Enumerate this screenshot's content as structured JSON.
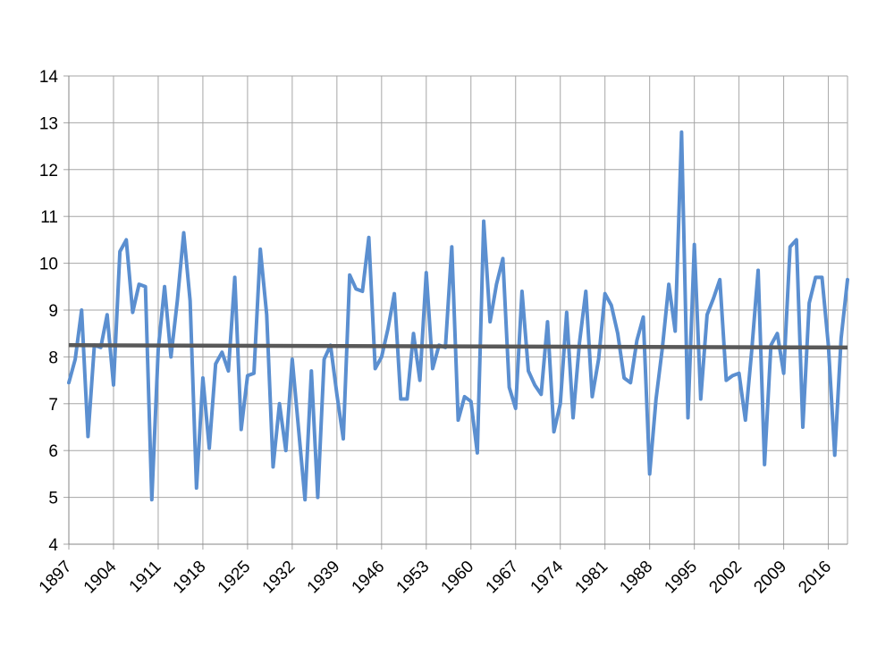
{
  "chart_data": {
    "type": "line",
    "title": "",
    "xlabel": "",
    "ylabel": "",
    "xlim": [
      1897,
      2019
    ],
    "ylim": [
      4,
      14
    ],
    "grid": true,
    "y_ticks": [
      4,
      5,
      6,
      7,
      8,
      9,
      10,
      11,
      12,
      13,
      14
    ],
    "x_tick_labels": [
      "1897",
      "1904",
      "1911",
      "1918",
      "1925",
      "1932",
      "1939",
      "1946",
      "1953",
      "1960",
      "1967",
      "1974",
      "1981",
      "1988",
      "1995",
      "2002",
      "2009",
      "2016"
    ],
    "colors": {
      "series": "#5b8fd0",
      "trend": "#595959",
      "grid": "#a6a6a6"
    },
    "series": [
      {
        "x_start": 1897,
        "values": [
          7.45,
          7.95,
          9.0,
          6.3,
          8.25,
          8.2,
          8.9,
          7.4,
          10.25,
          10.5,
          8.95,
          9.55,
          9.5,
          4.95,
          8.15,
          9.5,
          8.0,
          9.2,
          10.65,
          9.2,
          5.2,
          7.55,
          6.05,
          7.85,
          8.1,
          7.7,
          9.7,
          6.45,
          7.6,
          7.65,
          10.3,
          8.9,
          5.65,
          7.0,
          6.0,
          7.95,
          6.45,
          4.95,
          7.7,
          5.0,
          7.95,
          8.25,
          7.2,
          6.25,
          9.75,
          9.45,
          9.4,
          10.55,
          7.75,
          8.0,
          8.6,
          9.35,
          7.1,
          7.1,
          8.5,
          7.5,
          9.8,
          7.75,
          8.25,
          8.2,
          10.35,
          6.65,
          7.15,
          7.05,
          5.95,
          10.9,
          8.75,
          9.55,
          10.1,
          7.35,
          6.9,
          9.4,
          7.7,
          7.4,
          7.2,
          8.75,
          6.4,
          7.0,
          8.95,
          6.7,
          8.3,
          9.4,
          7.15,
          7.95,
          9.35,
          9.1,
          8.5,
          7.55,
          7.45,
          8.35,
          8.85,
          5.5,
          7.1,
          8.2,
          9.55,
          8.55,
          12.8,
          6.7,
          10.4,
          7.1,
          8.9,
          9.25,
          9.65,
          7.5,
          7.6,
          7.65,
          6.65,
          8.15,
          9.85,
          5.7,
          8.25,
          8.5,
          7.65,
          10.35,
          10.5,
          6.5,
          9.15,
          9.7,
          9.7,
          8.25,
          5.9,
          8.4,
          9.65
        ]
      },
      {
        "x": [
          1897,
          2019
        ],
        "values": [
          8.25,
          8.2
        ]
      }
    ]
  }
}
